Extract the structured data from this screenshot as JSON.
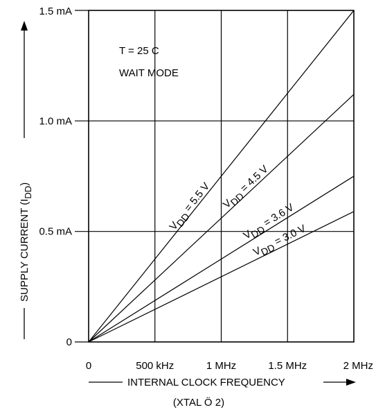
{
  "chart_data": {
    "type": "line",
    "title": "",
    "xlabel": "INTERNAL CLOCK FREQUENCY",
    "xlabel_sub": "(XTAL Ö 2)",
    "ylabel_main": "SUPPLY CURRENT (I",
    "ylabel_sub": "DD",
    "ylabel_close": ")",
    "x_ticks": [
      {
        "value": 0,
        "label": "0"
      },
      {
        "value": 0.5,
        "label": "500 kHz"
      },
      {
        "value": 1.0,
        "label": "1 MHz"
      },
      {
        "value": 1.5,
        "label": "1.5 MHz"
      },
      {
        "value": 2.0,
        "label": "2 MHz"
      }
    ],
    "y_ticks": [
      {
        "value": 0,
        "label": "0"
      },
      {
        "value": 0.5,
        "label": "0.5 mA"
      },
      {
        "value": 1.0,
        "label": "1.0 mA"
      },
      {
        "value": 1.5,
        "label": "1.5 mA"
      }
    ],
    "x_unit": "MHz",
    "y_unit": "mA",
    "xlim": [
      0,
      2
    ],
    "ylim": [
      0,
      1.5
    ],
    "grid": true,
    "annotations": [
      "T = 25  C",
      "WAIT MODE"
    ],
    "series": [
      {
        "label_v": "V",
        "label_sub": "DD",
        "label_rest": " = 5.5 V",
        "x": [
          0,
          2
        ],
        "y": [
          0,
          1.5
        ]
      },
      {
        "label_v": "V",
        "label_sub": "DD",
        "label_rest": " = 4.5 V",
        "x": [
          0,
          2
        ],
        "y": [
          0,
          1.12
        ]
      },
      {
        "label_v": "V",
        "label_sub": "DD",
        "label_rest": " = 3.6 V",
        "x": [
          0,
          2
        ],
        "y": [
          0,
          0.75
        ]
      },
      {
        "label_v": "V",
        "label_sub": "DD",
        "label_rest": " = 3.0 V",
        "x": [
          0,
          2
        ],
        "y": [
          0,
          0.59
        ]
      }
    ]
  }
}
